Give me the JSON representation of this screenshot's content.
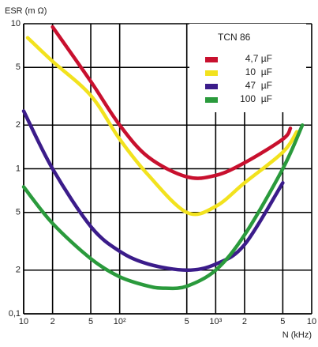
{
  "chart_data": {
    "type": "line",
    "y_label": "ESR (m  Ω)",
    "x_label": "N (kHz)",
    "xscale": "log",
    "yscale": "log",
    "grid": true,
    "xlim": [
      10,
      10000
    ],
    "ylim": [
      0.1,
      10
    ],
    "xticks": [
      10,
      {
        "value": 20,
        "label": "2"
      },
      {
        "value": 50,
        "label": "5"
      },
      {
        "value": 100,
        "label": "10²"
      },
      {
        "value": 500,
        "label": "5"
      },
      {
        "value": 1000,
        "label": "10³"
      },
      {
        "value": 2000,
        "label": "2"
      },
      {
        "value": 5000,
        "label": "5"
      },
      {
        "value": 10000,
        "label": "10"
      }
    ],
    "yticks": [
      10,
      5,
      2,
      1,
      {
        "value": 0.5,
        "label": "5"
      },
      {
        "value": 0.2,
        "label": "2"
      },
      {
        "value": 0.1,
        "label": "0,1"
      }
    ],
    "legend_title": "TCN 86",
    "legend": "upper right",
    "series": [
      {
        "name": "4,7 µF",
        "color": "#c8102e",
        "x": [
          20,
          50,
          100,
          200,
          500,
          1000,
          2000,
          5000,
          6000
        ],
        "values": [
          9.5,
          4,
          2,
          1.2,
          0.88,
          0.9,
          1.1,
          1.6,
          1.9
        ]
      },
      {
        "name": "10  µF",
        "color": "#f2e21e",
        "x": [
          11,
          20,
          50,
          100,
          200,
          500,
          1000,
          2000,
          5000,
          7000
        ],
        "values": [
          8,
          5.5,
          3.2,
          1.6,
          0.9,
          0.5,
          0.55,
          0.8,
          1.3,
          1.8
        ]
      },
      {
        "name": "47  µF",
        "color": "#3b1c8a",
        "x": [
          10,
          20,
          50,
          100,
          200,
          500,
          1000,
          2000,
          5000
        ],
        "values": [
          2.5,
          1.0,
          0.4,
          0.27,
          0.22,
          0.2,
          0.22,
          0.3,
          0.8
        ]
      },
      {
        "name": "100  µF",
        "color": "#2a9a3c",
        "x": [
          10,
          20,
          50,
          100,
          200,
          300,
          500,
          1000,
          2000,
          5000,
          8000
        ],
        "values": [
          0.75,
          0.42,
          0.24,
          0.18,
          0.155,
          0.15,
          0.155,
          0.2,
          0.35,
          1.0,
          2.0
        ]
      }
    ]
  }
}
